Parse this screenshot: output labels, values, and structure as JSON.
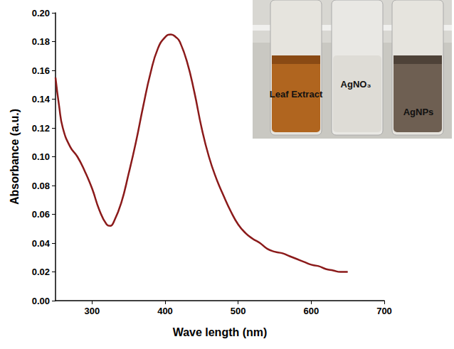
{
  "chart_data": {
    "type": "line",
    "x_label": "Wave length (nm)",
    "y_label": "Absorbance (a.u.)",
    "x": [
      250,
      255,
      260,
      270,
      280,
      290,
      300,
      310,
      320,
      325,
      330,
      340,
      350,
      360,
      370,
      380,
      390,
      400,
      408,
      415,
      420,
      430,
      440,
      450,
      460,
      470,
      480,
      490,
      500,
      510,
      520,
      530,
      540,
      550,
      560,
      570,
      580,
      590,
      600,
      610,
      620,
      630,
      640,
      650
    ],
    "values": [
      0.155,
      0.135,
      0.12,
      0.107,
      0.1,
      0.09,
      0.078,
      0.063,
      0.053,
      0.052,
      0.055,
      0.068,
      0.088,
      0.11,
      0.135,
      0.158,
      0.175,
      0.183,
      0.185,
      0.183,
      0.18,
      0.166,
      0.145,
      0.12,
      0.1,
      0.085,
      0.073,
      0.062,
      0.053,
      0.047,
      0.043,
      0.04,
      0.036,
      0.034,
      0.033,
      0.031,
      0.029,
      0.027,
      0.025,
      0.024,
      0.022,
      0.021,
      0.02,
      0.02
    ],
    "color": "#8b1a1a",
    "xlim": [
      250,
      700
    ],
    "xticks": [
      300,
      400,
      500,
      600,
      700
    ],
    "ylim": [
      0,
      0.2
    ],
    "yticks": [
      {
        "value": 0,
        "label": "0.00"
      },
      {
        "value": 0.02,
        "label": "0.02"
      },
      {
        "value": 0.04,
        "label": "0.04"
      },
      {
        "value": 0.06,
        "label": "0.06"
      },
      {
        "value": 0.08,
        "label": "0.08"
      },
      {
        "value": 0.1,
        "label": "0.10"
      },
      {
        "value": 0.12,
        "label": "0.12"
      },
      {
        "value": 0.14,
        "label": "0.14"
      },
      {
        "value": 0.16,
        "label": "0.16"
      },
      {
        "value": 0.18,
        "label": "0.18"
      },
      {
        "value": 0.2,
        "label": "0.20"
      }
    ],
    "grid": false,
    "annotations": [
      "Leaf Extract",
      "AgNO₃",
      "AgNPs"
    ]
  }
}
